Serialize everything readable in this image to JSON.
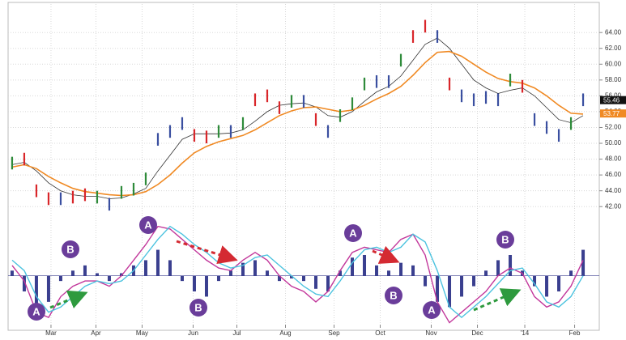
{
  "chart_data": {
    "type": "ohlc",
    "high": [
      48.3,
      48.8,
      44.8,
      43.8,
      43.8,
      44,
      44.3,
      44,
      43.1,
      44.6,
      45,
      46.3,
      51.3,
      52.3,
      53.3,
      51.8,
      51.6,
      52.3,
      52.3,
      53.3,
      56.3,
      56.8,
      55.3,
      56.1,
      56.1,
      53.8,
      52.3,
      54.3,
      55.8,
      58.3,
      58.6,
      58.6,
      61.3,
      64.3,
      65.6,
      64.3,
      58.3,
      56.8,
      56.3,
      56.6,
      56.3,
      58.8,
      58,
      53.8,
      52.8,
      51.8,
      53.3,
      56.3
    ],
    "low": [
      46.7,
      47.2,
      43.2,
      42.2,
      42.2,
      42.4,
      42.7,
      42.4,
      41.5,
      43,
      43.4,
      44.7,
      49.7,
      50.7,
      51.7,
      50.2,
      50,
      50.7,
      50.7,
      51.7,
      54.7,
      55.2,
      53.7,
      54.5,
      54.5,
      52.2,
      50.7,
      52.7,
      54.2,
      56.7,
      57,
      57,
      59.7,
      62.7,
      64,
      62.7,
      56.7,
      55.2,
      54.7,
      55,
      54.7,
      57.2,
      56.4,
      52.2,
      51.2,
      50.2,
      51.7,
      54.7
    ],
    "bar_colors": [
      "#2e8b3a",
      "#d9262a",
      "#d9262a",
      "#d9262a",
      "#3a4fa0",
      "#d9262a",
      "#d9262a",
      "#2e8b3a",
      "#3a4fa0",
      "#2e8b3a",
      "#2e8b3a",
      "#2e8b3a",
      "#3a4fa0",
      "#3a4fa0",
      "#3a4fa0",
      "#d9262a",
      "#d9262a",
      "#2e8b3a",
      "#3a4fa0",
      "#2e8b3a",
      "#d9262a",
      "#d9262a",
      "#d9262a",
      "#2e8b3a",
      "#3a4fa0",
      "#d9262a",
      "#3a4fa0",
      "#2e8b3a",
      "#2e8b3a",
      "#2e8b3a",
      "#3a4fa0",
      "#3a4fa0",
      "#2e8b3a",
      "#d9262a",
      "#d9262a",
      "#3a4fa0",
      "#d9262a",
      "#3a4fa0",
      "#3a4fa0",
      "#3a4fa0",
      "#3a4fa0",
      "#2e8b3a",
      "#d9262a",
      "#3a4fa0",
      "#3a4fa0",
      "#3a4fa0",
      "#2e8b3a",
      "#3a4fa0"
    ],
    "series": [
      {
        "color": "#333333",
        "values": [
          47.3,
          47.6,
          46.5,
          45,
          44,
          43.5,
          43.3,
          43.3,
          43,
          43.1,
          43.6,
          44.3,
          46.5,
          48.5,
          50.5,
          51.2,
          51.2,
          51.2,
          51.3,
          51.7,
          52.8,
          54,
          54.8,
          55,
          55.1,
          54.6,
          53.5,
          53.3,
          54,
          55.3,
          56.5,
          57.2,
          58.5,
          60.5,
          62.5,
          63.3,
          62,
          60,
          58,
          57,
          56.3,
          56.7,
          57,
          56,
          54.5,
          53,
          52.6,
          53.5
        ]
      },
      {
        "color": "#f08a24",
        "values": [
          47,
          47.3,
          46.8,
          45.8,
          45,
          44.3,
          43.9,
          43.7,
          43.5,
          43.4,
          43.5,
          43.9,
          44.8,
          46,
          47.5,
          48.8,
          49.6,
          50.2,
          50.6,
          51,
          51.7,
          52.6,
          53.5,
          54.1,
          54.5,
          54.6,
          54.3,
          54,
          54.2,
          54.8,
          55.6,
          56.3,
          57.2,
          58.6,
          60.2,
          61.5,
          61.6,
          61,
          60,
          59,
          58.2,
          57.8,
          57.6,
          57,
          56,
          54.8,
          53.8,
          53.7
        ]
      }
    ],
    "last_values": [
      55.46,
      53.77
    ],
    "last_value_colors": [
      "#111111",
      "#f08a24"
    ],
    "xlim": [
      -0.33,
      48.33
    ],
    "xticks": [
      {
        "value": 3.2,
        "label": "Mar"
      },
      {
        "value": 6.9,
        "label": "Apr"
      },
      {
        "value": 10.7,
        "label": "May"
      },
      {
        "value": 14.9,
        "label": "Jun"
      },
      {
        "value": 18.5,
        "label": "Jul"
      },
      {
        "value": 22.5,
        "label": "Aug"
      },
      {
        "value": 26.5,
        "label": "Sep"
      },
      {
        "value": 30.3,
        "label": "Oct"
      },
      {
        "value": 34.5,
        "label": "Nov"
      },
      {
        "value": 38.3,
        "label": "Dec"
      },
      {
        "value": 42.2,
        "label": "'14"
      },
      {
        "value": 46.3,
        "label": "Feb"
      }
    ],
    "ylim": [
      41,
      67.6
    ],
    "yticks": [
      {
        "value": 42,
        "label": "42.00"
      },
      {
        "value": 44,
        "label": "44.00"
      },
      {
        "value": 46,
        "label": "46.00"
      },
      {
        "value": 48,
        "label": "48.00"
      },
      {
        "value": 50,
        "label": "50.00"
      },
      {
        "value": 52,
        "label": "52.00"
      },
      {
        "value": 54,
        "label": "54.00"
      },
      {
        "value": 56,
        "label": "56.00"
      },
      {
        "value": 58,
        "label": "58.00"
      },
      {
        "value": 60,
        "label": "60.00"
      },
      {
        "value": 62,
        "label": "62.00"
      },
      {
        "value": 64,
        "label": "64.00"
      }
    ],
    "grid": true,
    "oscillator": {
      "ylim": [
        -1,
        1.1
      ],
      "histogram": {
        "color": "#3a3f8f",
        "values": [
          0.1,
          -0.3,
          -0.6,
          -0.5,
          -0.1,
          0.1,
          0.2,
          0.05,
          -0.1,
          0.05,
          0.2,
          0.3,
          0.5,
          0.3,
          -0.1,
          -0.3,
          -0.4,
          -0.1,
          0.1,
          0.25,
          0.3,
          0.1,
          -0.1,
          -0.05,
          -0.1,
          -0.25,
          -0.3,
          0.1,
          0.35,
          0.4,
          0.2,
          0.1,
          0.25,
          0.2,
          -0.2,
          -0.5,
          -0.6,
          -0.4,
          -0.2,
          0.1,
          0.3,
          0.4,
          0.1,
          -0.2,
          -0.4,
          -0.3,
          0.1,
          0.5
        ]
      },
      "series": [
        {
          "color": "#c2379b",
          "values": [
            0.2,
            -0.1,
            -0.7,
            -0.8,
            -0.4,
            -0.2,
            -0.1,
            -0.1,
            -0.2,
            0,
            0.3,
            0.6,
            0.95,
            0.9,
            0.7,
            0.5,
            0.3,
            0.15,
            0.1,
            0.3,
            0.45,
            0.3,
            0,
            -0.2,
            -0.3,
            -0.5,
            -0.3,
            0.1,
            0.45,
            0.55,
            0.5,
            0.45,
            0.7,
            0.8,
            0.4,
            -0.5,
            -0.9,
            -0.7,
            -0.5,
            -0.3,
            0,
            0.15,
            0.05,
            -0.4,
            -0.6,
            -0.5,
            -0.2,
            0.3
          ]
        },
        {
          "color": "#4cc3df",
          "values": [
            0.3,
            0.1,
            -0.4,
            -0.7,
            -0.6,
            -0.4,
            -0.2,
            -0.1,
            -0.15,
            -0.1,
            0.1,
            0.4,
            0.7,
            0.95,
            0.8,
            0.6,
            0.45,
            0.25,
            0.15,
            0.2,
            0.35,
            0.4,
            0.2,
            0,
            -0.2,
            -0.35,
            -0.4,
            -0.1,
            0.25,
            0.5,
            0.55,
            0.45,
            0.55,
            0.8,
            0.65,
            0.1,
            -0.6,
            -0.8,
            -0.6,
            -0.4,
            -0.15,
            0.1,
            0.15,
            -0.15,
            -0.5,
            -0.6,
            -0.4,
            0
          ]
        }
      ]
    },
    "annotations": [
      "A",
      "B",
      "A",
      "B",
      "A",
      "B",
      "A",
      "B"
    ]
  }
}
